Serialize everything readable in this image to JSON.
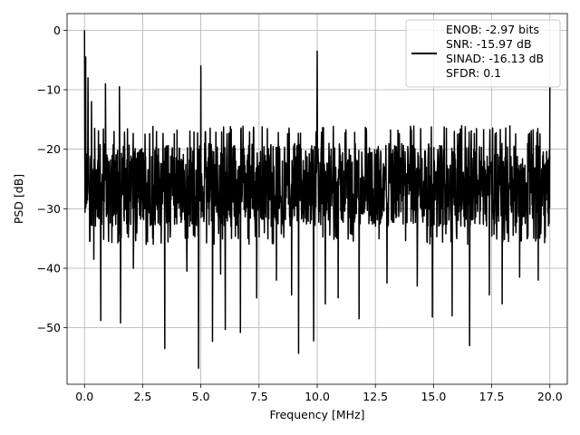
{
  "chart_data": {
    "type": "line",
    "title": "",
    "xlabel": "Frequency [MHz]",
    "ylabel": "PSD [dB]",
    "xlim": [
      -0.75,
      20.75
    ],
    "ylim": [
      -59.5,
      2.8
    ],
    "x_ticks": [
      0.0,
      2.5,
      5.0,
      7.5,
      10.0,
      12.5,
      15.0,
      17.5,
      20.0
    ],
    "x_tick_labels": [
      "0.0",
      "2.5",
      "5.0",
      "7.5",
      "10.0",
      "12.5",
      "15.0",
      "17.5",
      "20.0"
    ],
    "y_ticks": [
      0,
      -10,
      -20,
      -30,
      -40,
      -50
    ],
    "y_tick_labels": [
      "0",
      "−10",
      "−20",
      "−30",
      "−40",
      "−50"
    ],
    "grid": true,
    "legend_position": "top-right",
    "line_color": "#000000",
    "series": [
      {
        "name": "",
        "x_range": [
          0,
          20
        ],
        "noise_band_center_db": -25.5,
        "noise_band_range_db": [
          -36,
          -16
        ],
        "peaks": [
          {
            "x": 0.0,
            "y": 0.0
          },
          {
            "x": 0.05,
            "y": -4.5
          },
          {
            "x": 0.15,
            "y": -8.0
          },
          {
            "x": 0.3,
            "y": -12.0
          },
          {
            "x": 0.9,
            "y": -9.0
          },
          {
            "x": 1.5,
            "y": -9.5
          },
          {
            "x": 5.0,
            "y": -6.0
          },
          {
            "x": 10.0,
            "y": -3.5
          },
          {
            "x": 20.0,
            "y": -9.5
          }
        ],
        "dips": [
          {
            "x": 0.4,
            "y": -38.5
          },
          {
            "x": 0.7,
            "y": -48.8
          },
          {
            "x": 1.55,
            "y": -49.2
          },
          {
            "x": 2.1,
            "y": -40.0
          },
          {
            "x": 3.45,
            "y": -53.5
          },
          {
            "x": 4.4,
            "y": -40.5
          },
          {
            "x": 4.9,
            "y": -56.8
          },
          {
            "x": 5.5,
            "y": -52.3
          },
          {
            "x": 5.85,
            "y": -41.0
          },
          {
            "x": 6.05,
            "y": -50.3
          },
          {
            "x": 6.7,
            "y": -50.8
          },
          {
            "x": 7.4,
            "y": -45.0
          },
          {
            "x": 8.25,
            "y": -42.0
          },
          {
            "x": 8.9,
            "y": -44.5
          },
          {
            "x": 9.2,
            "y": -54.3
          },
          {
            "x": 9.85,
            "y": -52.2
          },
          {
            "x": 10.35,
            "y": -46.0
          },
          {
            "x": 10.9,
            "y": -45.0
          },
          {
            "x": 11.8,
            "y": -48.5
          },
          {
            "x": 13.0,
            "y": -42.5
          },
          {
            "x": 14.3,
            "y": -43.0
          },
          {
            "x": 14.95,
            "y": -48.2
          },
          {
            "x": 15.8,
            "y": -48.0
          },
          {
            "x": 16.55,
            "y": -53.0
          },
          {
            "x": 17.4,
            "y": -44.5
          },
          {
            "x": 17.95,
            "y": -46.0
          },
          {
            "x": 18.7,
            "y": -41.5
          },
          {
            "x": 19.5,
            "y": -42.0
          }
        ]
      }
    ],
    "legend_lines": [
      "ENOB: -2.97 bits",
      "SNR: -15.97 dB",
      "SINAD: -16.13 dB",
      "SFDR: 0.1"
    ]
  }
}
